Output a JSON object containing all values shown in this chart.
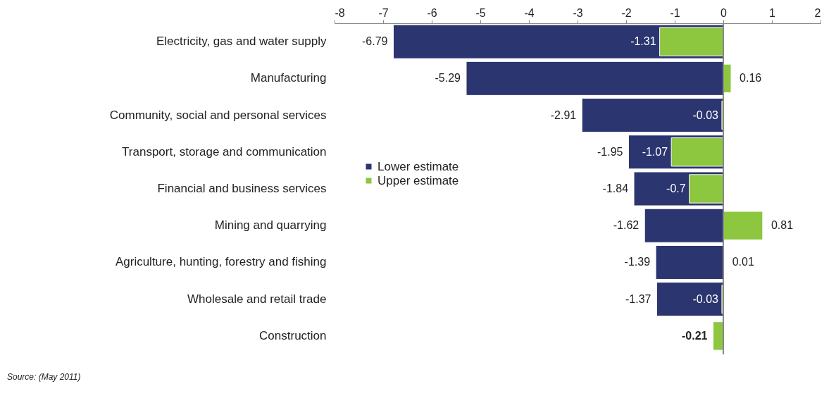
{
  "chart_data": {
    "type": "bar",
    "orientation": "horizontal",
    "categories": [
      "Electricity, gas and water supply",
      "Manufacturing",
      "Community, social and personal services",
      "Transport, storage and communication",
      "Financial and business services",
      "Mining and quarrying",
      "Agriculture, hunting, forestry and fishing",
      "Wholesale and retail trade",
      "Construction"
    ],
    "series": [
      {
        "name": "Lower estimate",
        "color": "#2b3570",
        "values": [
          -6.79,
          -5.29,
          -2.91,
          -1.95,
          -1.84,
          -1.62,
          -1.39,
          -1.37,
          null
        ],
        "value_labels": [
          "-6.79",
          "-5.29",
          "-2.91",
          "-1.95",
          "-1.84",
          "-1.62",
          "-1.39",
          "-1.37",
          null
        ]
      },
      {
        "name": "Upper estimate",
        "color": "#8dc63f",
        "values": [
          -1.31,
          0.16,
          -0.03,
          -1.07,
          -0.7,
          0.81,
          0.01,
          -0.03,
          -0.21
        ],
        "value_labels": [
          "-1.31",
          "0.16",
          "-0.03",
          "-1.07",
          "-0.7",
          "0.81",
          "0.01",
          "-0.03",
          "-0.21"
        ]
      }
    ],
    "xlim": [
      -8,
      2
    ],
    "xticks": [
      -8,
      -7,
      -6,
      -5,
      -4,
      -3,
      -2,
      -1,
      0,
      1,
      2
    ],
    "grid": false,
    "ref_lines": [
      {
        "axis": "x",
        "value": 0,
        "color": "#888888"
      }
    ],
    "legend": "left",
    "annotations": [
      "Source: (May 2011)"
    ]
  }
}
